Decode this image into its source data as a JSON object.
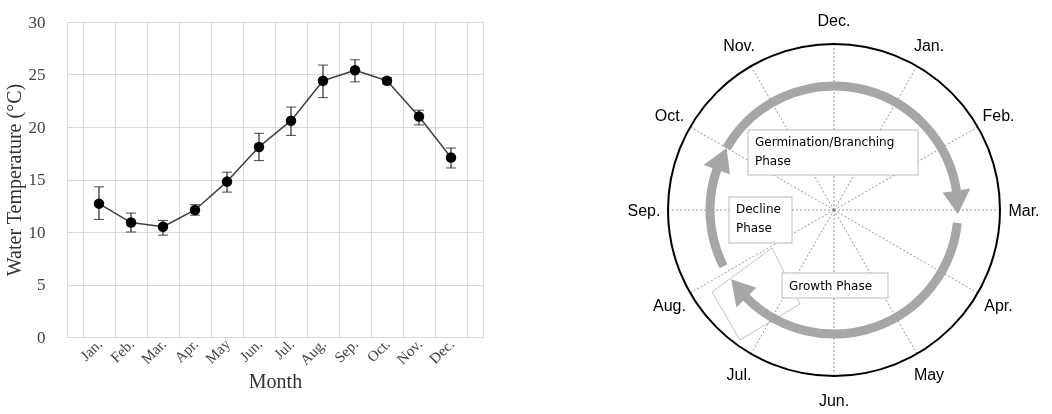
{
  "chart_data": [
    {
      "type": "line",
      "xlabel": "Month",
      "ylabel": "Water Temperature (°C)",
      "categories": [
        "Jan.",
        "Feb.",
        "Mar.",
        "Apr.",
        "May",
        "Jun.",
        "Jul.",
        "Aug.",
        "Sep.",
        "Oct.",
        "Nov.",
        "Dec."
      ],
      "series": [
        {
          "color": "#000000",
          "values": [
            12.7,
            10.9,
            10.5,
            12.1,
            14.8,
            18.1,
            20.6,
            24.4,
            25.4,
            24.4,
            21.0,
            17.1
          ],
          "errors": [
            [
              11.2,
              14.3
            ],
            [
              10.0,
              11.8
            ],
            [
              9.7,
              11.1
            ],
            [
              11.6,
              12.6
            ],
            [
              13.8,
              15.7
            ],
            [
              16.8,
              19.4
            ],
            [
              19.2,
              21.9
            ],
            [
              22.8,
              25.9
            ],
            [
              24.3,
              26.4
            ],
            [
              24.1,
              24.7
            ],
            [
              20.2,
              21.6
            ],
            [
              16.1,
              18.0
            ]
          ]
        }
      ],
      "ylim": [
        0,
        30
      ],
      "yticks": [
        0,
        5,
        10,
        15,
        20,
        25,
        30
      ],
      "grid": true,
      "marker": "circle"
    },
    {
      "type": "other",
      "annotations": [
        "Dec.",
        "Jan.",
        "Feb.",
        "Mar.",
        "Apr.",
        "May",
        "Jun.",
        "Jul.",
        "Aug.",
        "Sep.",
        "Oct.",
        "Nov.",
        "Germination/Branching Phase",
        "Decline Phase",
        "Growth Phase"
      ]
    }
  ]
}
